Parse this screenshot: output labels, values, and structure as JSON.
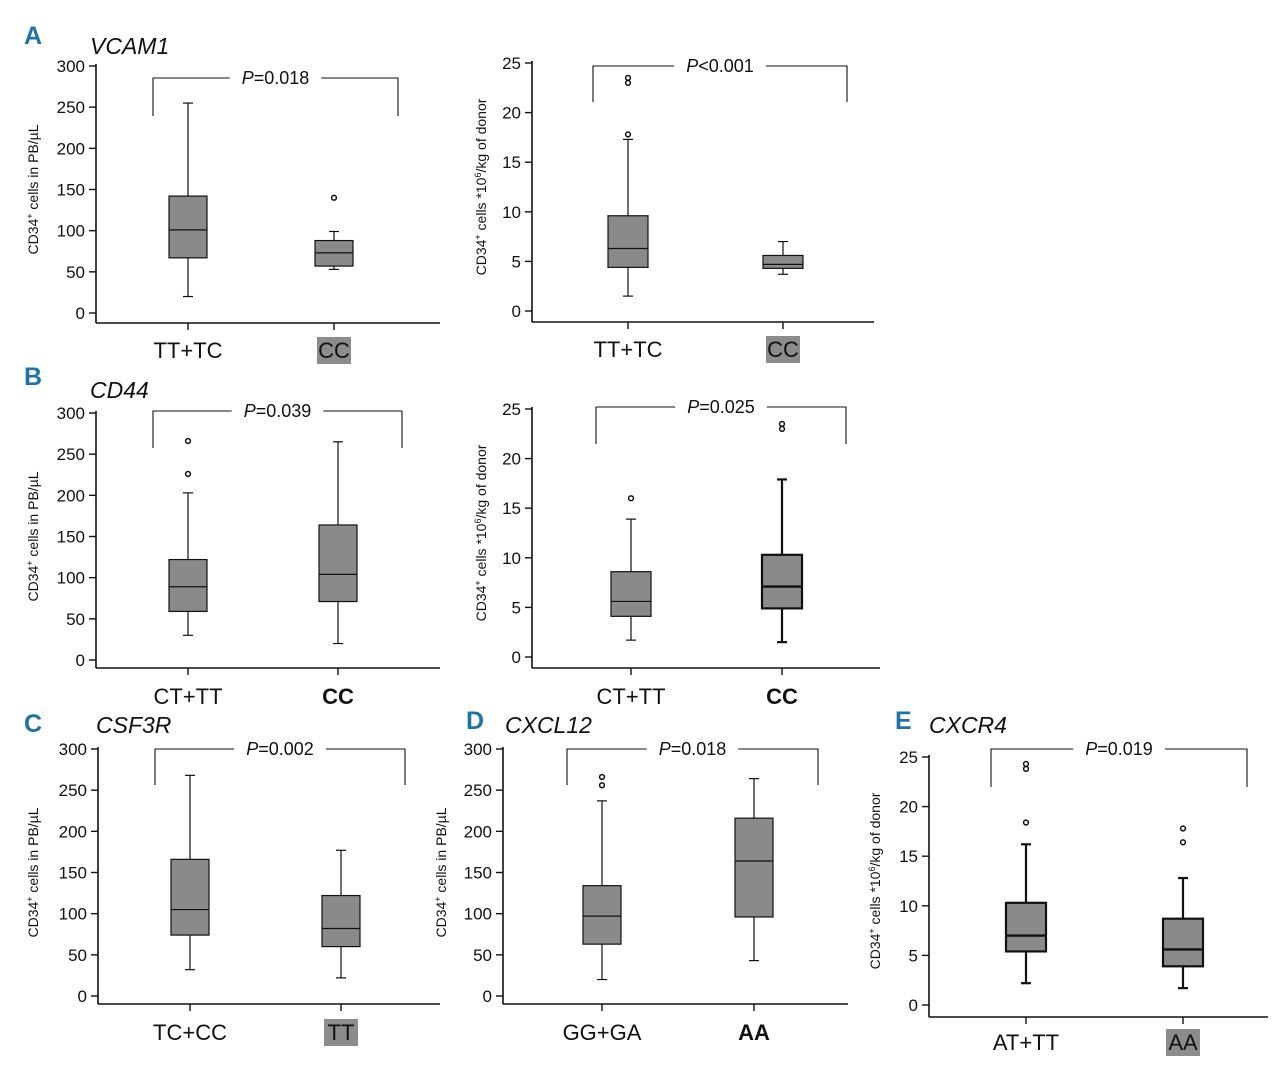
{
  "chart_data": [
    {
      "id": "A1",
      "type": "box",
      "panel_letter": "A",
      "gene": "VCAM1",
      "ylabel": "CD34⁺ cells in PB/µL",
      "ylim": [
        0,
        300
      ],
      "yticks": [
        0,
        50,
        100,
        150,
        200,
        250,
        300
      ],
      "categories": [
        "TT+TC",
        "CC"
      ],
      "category_style": [
        "plain",
        "shaded"
      ],
      "p_label": "P=0.018",
      "boxes": [
        {
          "whisker_low": 20,
          "q1": 67,
          "median": 101,
          "q3": 142,
          "whisker_high": 255,
          "outliers": [],
          "bold": false
        },
        {
          "whisker_low": 53,
          "q1": 57,
          "median": 73,
          "q3": 88,
          "whisker_high": 99,
          "outliers": [
            140
          ],
          "bold": false
        }
      ]
    },
    {
      "id": "A2",
      "type": "box",
      "panel_letter": "",
      "gene": "",
      "ylabel": "CD34⁺ cells *10⁶/kg of donor",
      "ylim": [
        0,
        25
      ],
      "yticks": [
        0,
        5,
        10,
        15,
        20,
        25
      ],
      "categories": [
        "TT+TC",
        "CC"
      ],
      "category_style": [
        "plain",
        "shaded"
      ],
      "p_label": "P<0.001",
      "boxes": [
        {
          "whisker_low": 1.5,
          "q1": 4.4,
          "median": 6.3,
          "q3": 9.6,
          "whisker_high": 17.3,
          "outliers": [
            17.8,
            23.0,
            23.5
          ],
          "bold": false
        },
        {
          "whisker_low": 3.7,
          "q1": 4.3,
          "median": 4.7,
          "q3": 5.6,
          "whisker_high": 7.0,
          "outliers": [],
          "bold": false
        }
      ]
    },
    {
      "id": "B1",
      "type": "box",
      "panel_letter": "B",
      "gene": "CD44",
      "ylabel": "CD34⁺ cells in PB/µL",
      "ylim": [
        0,
        300
      ],
      "yticks": [
        0,
        50,
        100,
        150,
        200,
        250,
        300
      ],
      "categories": [
        "CT+TT",
        "CC"
      ],
      "category_style": [
        "plain",
        "bold"
      ],
      "p_label": "P=0.039",
      "boxes": [
        {
          "whisker_low": 30,
          "q1": 59,
          "median": 89,
          "q3": 122,
          "whisker_high": 203,
          "outliers": [
            226,
            266
          ],
          "bold": false
        },
        {
          "whisker_low": 20,
          "q1": 71,
          "median": 104,
          "q3": 164,
          "whisker_high": 265,
          "outliers": [],
          "bold": false
        }
      ]
    },
    {
      "id": "B2",
      "type": "box",
      "panel_letter": "",
      "gene": "",
      "ylabel": "CD34⁺ cells *10⁶/kg of donor",
      "ylim": [
        0,
        25
      ],
      "yticks": [
        0,
        5,
        10,
        15,
        20,
        25
      ],
      "categories": [
        "CT+TT",
        "CC"
      ],
      "category_style": [
        "plain",
        "bold"
      ],
      "p_label": "P=0.025",
      "boxes": [
        {
          "whisker_low": 1.7,
          "q1": 4.1,
          "median": 5.6,
          "q3": 8.6,
          "whisker_high": 13.9,
          "outliers": [
            16.0
          ],
          "bold": false
        },
        {
          "whisker_low": 1.5,
          "q1": 4.9,
          "median": 7.1,
          "q3": 10.3,
          "whisker_high": 17.9,
          "outliers": [
            23.0,
            23.5
          ],
          "bold": true
        }
      ]
    },
    {
      "id": "C",
      "type": "box",
      "panel_letter": "C",
      "gene": "CSF3R",
      "ylabel": "CD34⁺ cells in PB/µL",
      "ylim": [
        0,
        300
      ],
      "yticks": [
        0,
        50,
        100,
        150,
        200,
        250,
        300
      ],
      "categories": [
        "TC+CC",
        "TT"
      ],
      "category_style": [
        "plain",
        "shaded"
      ],
      "p_label": "P=0.002",
      "boxes": [
        {
          "whisker_low": 32,
          "q1": 74,
          "median": 105,
          "q3": 166,
          "whisker_high": 268,
          "outliers": [],
          "bold": false
        },
        {
          "whisker_low": 22,
          "q1": 60,
          "median": 82,
          "q3": 122,
          "whisker_high": 177,
          "outliers": [],
          "bold": false
        }
      ]
    },
    {
      "id": "D",
      "type": "box",
      "panel_letter": "D",
      "gene": "CXCL12",
      "ylabel": "CD34⁺ cells in PB/µL",
      "ylim": [
        0,
        300
      ],
      "yticks": [
        0,
        50,
        100,
        150,
        200,
        250,
        300
      ],
      "categories": [
        "GG+GA",
        "AA"
      ],
      "category_style": [
        "plain",
        "bold"
      ],
      "p_label": "P=0.018",
      "boxes": [
        {
          "whisker_low": 20,
          "q1": 63,
          "median": 97,
          "q3": 134,
          "whisker_high": 237,
          "outliers": [
            256,
            266
          ],
          "bold": false
        },
        {
          "whisker_low": 43,
          "q1": 96,
          "median": 164,
          "q3": 216,
          "whisker_high": 264,
          "outliers": [],
          "bold": false
        }
      ]
    },
    {
      "id": "E",
      "type": "box",
      "panel_letter": "E",
      "gene": "CXCR4",
      "ylabel": "CD34⁺ cells *10⁶/kg of donor",
      "ylim": [
        0,
        25
      ],
      "yticks": [
        0,
        5,
        10,
        15,
        20,
        25
      ],
      "categories": [
        "AT+TT",
        "AA"
      ],
      "category_style": [
        "plain",
        "shaded"
      ],
      "p_label": "P=0.019",
      "boxes": [
        {
          "whisker_low": 2.2,
          "q1": 5.4,
          "median": 7.0,
          "q3": 10.3,
          "whisker_high": 16.2,
          "outliers": [
            18.4,
            23.8,
            24.3
          ],
          "bold": true
        },
        {
          "whisker_low": 1.7,
          "q1": 3.9,
          "median": 5.6,
          "q3": 8.7,
          "whisker_high": 12.8,
          "outliers": [
            16.4,
            17.8
          ],
          "bold": true
        }
      ]
    }
  ]
}
